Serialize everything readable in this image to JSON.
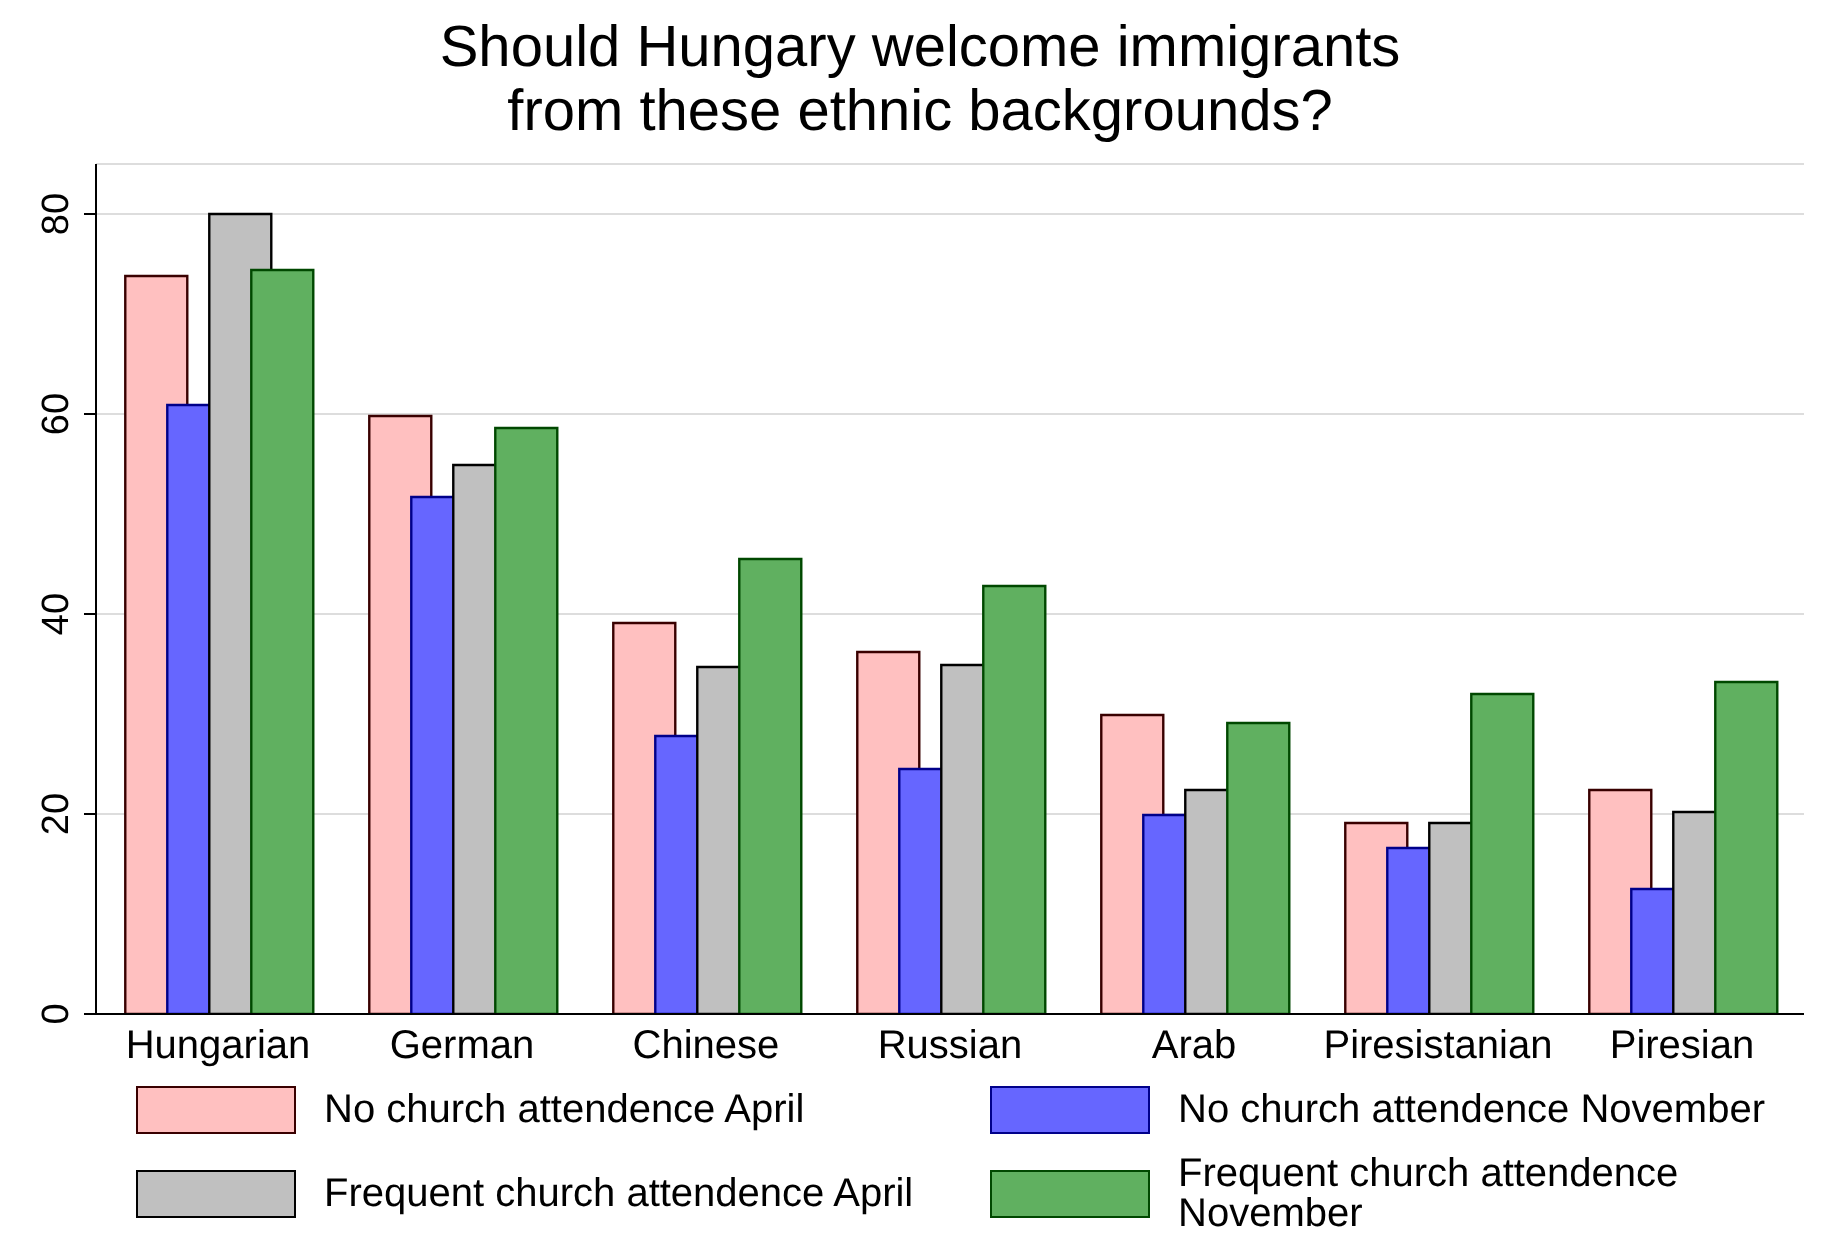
{
  "chart_data": {
    "type": "bar",
    "title": "Should Hungary welcome immigrants\nfrom these ethnic backgrounds?",
    "categories": [
      "Hungarian",
      "German",
      "Chinese",
      "Russian",
      "Arab",
      "Piresistanian",
      "Piresian"
    ],
    "series": [
      {
        "name": "No church attendence April",
        "color": "#ffc0c0",
        "values": [
          73.8,
          59.8,
          39.1,
          36.2,
          29.9,
          19.1,
          22.4
        ]
      },
      {
        "name": "No church attendence November",
        "color": "#6666ff",
        "values": [
          60.9,
          51.7,
          27.8,
          24.5,
          19.9,
          16.6,
          12.5
        ]
      },
      {
        "name": "Frequent church attendence April",
        "color": "#c0c0c0",
        "values": [
          80,
          54.9,
          34.7,
          34.9,
          22.4,
          19.1,
          20.2
        ]
      },
      {
        "name": "Frequent church attendence November",
        "color": "#60b060",
        "values": [
          74.4,
          58.6,
          45.5,
          42.8,
          29.1,
          32,
          33.2
        ]
      }
    ],
    "ylim": [
      0,
      85
    ],
    "yticks": [
      0,
      20,
      40,
      60,
      80
    ],
    "grid": "y",
    "legend": "bottom"
  }
}
